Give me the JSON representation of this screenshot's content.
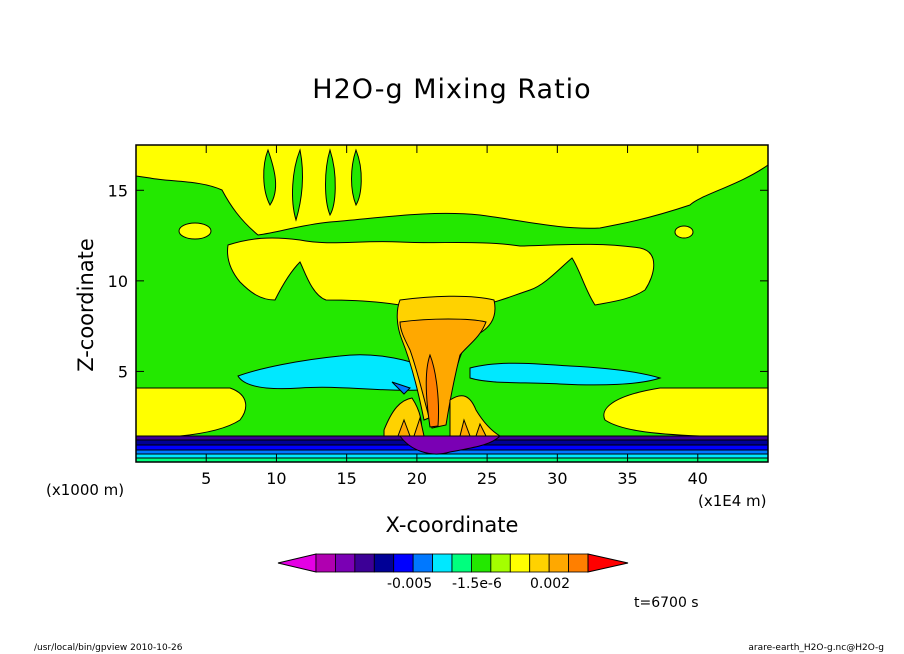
{
  "chart_data": {
    "type": "contour",
    "title": "H2O-g Mixing Ratio",
    "xlabel": "X-coordinate",
    "ylabel": "Z-coordinate",
    "x_unit": "(x1E4 m)",
    "y_unit": "(x1000 m)",
    "xlim": [
      0,
      45
    ],
    "ylim": [
      0,
      17.5
    ],
    "x_ticks": [
      "5",
      "10",
      "15",
      "20",
      "25",
      "30",
      "35",
      "40"
    ],
    "y_ticks": [
      "5",
      "10",
      "15"
    ],
    "x_tick_values": [
      5,
      10,
      15,
      20,
      25,
      30,
      35,
      40
    ],
    "y_tick_values": [
      5,
      10,
      15
    ],
    "colorbar_labels": [
      "-0.005",
      "-1.5e-6",
      "0.002"
    ],
    "colorbar_colors": [
      "#e400e4",
      "#b000b0",
      "#7a00b4",
      "#3c0096",
      "#000096",
      "#0000ff",
      "#0078ff",
      "#00e8ff",
      "#00ff7e",
      "#23e800",
      "#a4ff00",
      "#ffff00",
      "#ffd200",
      "#ffa800",
      "#ff7f00",
      "#ff0000"
    ],
    "annotation": "t=6700 s",
    "footer_left": "/usr/local/bin/gpview  2010-10-26",
    "footer_right": "arare-earth_H2O-g.nc@H2O-g",
    "colors": {
      "background_field": "#23e800",
      "moist_layer": "#ffff00",
      "anvil": "#ffd200",
      "core": "#ffa800",
      "dry_band": "#00e8ff",
      "surface_layer": "#000096"
    }
  }
}
